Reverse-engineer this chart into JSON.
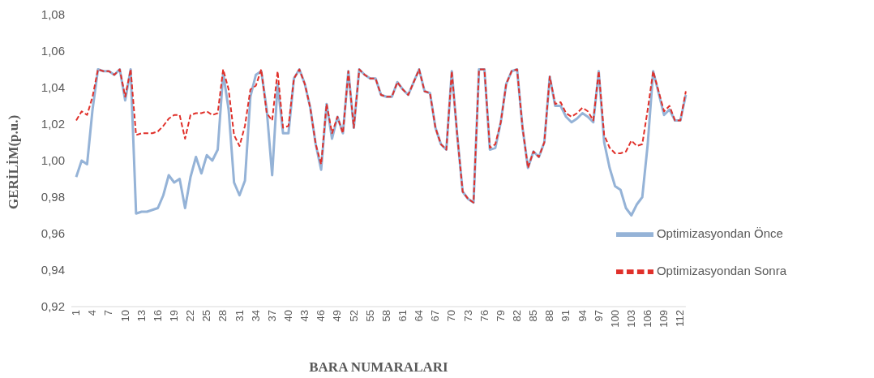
{
  "chart_data": {
    "type": "line",
    "xlabel": "BARA NUMARALARI",
    "ylabel": "GERİLİM(p.u.)",
    "categories": [
      "1",
      null,
      null,
      "4",
      null,
      null,
      "7",
      null,
      null,
      "10",
      null,
      null,
      "13",
      null,
      null,
      "16",
      null,
      null,
      "19",
      null,
      null,
      "22",
      null,
      null,
      "25",
      null,
      null,
      "28",
      null,
      null,
      "31",
      null,
      null,
      "34",
      null,
      null,
      "37",
      null,
      null,
      "40",
      null,
      null,
      "43",
      null,
      null,
      "46",
      null,
      null,
      "49",
      null,
      null,
      "52",
      null,
      null,
      "55",
      null,
      null,
      "58",
      null,
      null,
      "61",
      null,
      null,
      "64",
      null,
      null,
      "67",
      null,
      null,
      "70",
      null,
      null,
      "73",
      null,
      null,
      "76",
      null,
      null,
      "79",
      null,
      null,
      "82",
      null,
      null,
      "85",
      null,
      null,
      "88",
      null,
      null,
      "91",
      null,
      null,
      "94",
      null,
      null,
      "97",
      null,
      null,
      "100",
      null,
      null,
      "103",
      null,
      null,
      "106",
      null,
      null,
      "109",
      null,
      null,
      "112",
      null
    ],
    "series": [
      {
        "name": "Optimizasyondan Önce",
        "color": "#95b3d7",
        "line_style": "solid",
        "values": [
          0.991,
          1.0,
          0.998,
          1.028,
          1.05,
          1.049,
          1.049,
          1.047,
          1.05,
          1.033,
          1.05,
          0.971,
          0.972,
          0.972,
          0.973,
          0.974,
          0.981,
          0.992,
          0.988,
          0.99,
          0.974,
          0.991,
          1.002,
          0.993,
          1.003,
          1.0,
          1.006,
          1.048,
          1.028,
          0.988,
          0.981,
          0.989,
          1.035,
          1.047,
          1.049,
          1.028,
          0.992,
          1.042,
          1.015,
          1.015,
          1.045,
          1.05,
          1.042,
          1.029,
          1.009,
          0.995,
          1.031,
          1.012,
          1.024,
          1.015,
          1.049,
          1.018,
          1.05,
          1.047,
          1.045,
          1.045,
          1.036,
          1.035,
          1.035,
          1.043,
          1.039,
          1.036,
          1.043,
          1.05,
          1.038,
          1.037,
          1.018,
          1.009,
          1.006,
          1.049,
          1.014,
          0.983,
          0.979,
          0.977,
          1.05,
          1.05,
          1.006,
          1.007,
          1.021,
          1.042,
          1.049,
          1.05,
          1.018,
          0.996,
          1.005,
          1.002,
          1.01,
          1.046,
          1.03,
          1.03,
          1.024,
          1.021,
          1.023,
          1.026,
          1.024,
          1.021,
          1.049,
          1.01,
          0.996,
          0.986,
          0.984,
          0.974,
          0.97,
          0.976,
          0.98,
          1.009,
          1.049,
          1.037,
          1.025,
          1.028,
          1.022,
          1.022,
          1.036
        ]
      },
      {
        "name": "Optimizasyondan Sonra",
        "color": "#e0302a",
        "line_style": "dashed",
        "values": [
          1.022,
          1.027,
          1.025,
          1.035,
          1.05,
          1.049,
          1.049,
          1.047,
          1.05,
          1.035,
          1.05,
          1.014,
          1.015,
          1.015,
          1.015,
          1.016,
          1.019,
          1.023,
          1.025,
          1.025,
          1.012,
          1.025,
          1.026,
          1.026,
          1.027,
          1.025,
          1.026,
          1.05,
          1.039,
          1.014,
          1.008,
          1.019,
          1.039,
          1.041,
          1.05,
          1.026,
          1.022,
          1.049,
          1.018,
          1.019,
          1.045,
          1.05,
          1.042,
          1.029,
          1.009,
          0.998,
          1.031,
          1.015,
          1.024,
          1.015,
          1.049,
          1.018,
          1.05,
          1.047,
          1.045,
          1.045,
          1.036,
          1.035,
          1.035,
          1.043,
          1.039,
          1.036,
          1.043,
          1.05,
          1.038,
          1.037,
          1.018,
          1.009,
          1.006,
          1.049,
          1.014,
          0.983,
          0.979,
          0.977,
          1.05,
          1.05,
          1.007,
          1.009,
          1.021,
          1.042,
          1.049,
          1.05,
          1.018,
          0.996,
          1.005,
          1.002,
          1.01,
          1.046,
          1.031,
          1.032,
          1.026,
          1.024,
          1.026,
          1.029,
          1.027,
          1.022,
          1.049,
          1.014,
          1.007,
          1.004,
          1.004,
          1.005,
          1.011,
          1.008,
          1.009,
          1.028,
          1.049,
          1.038,
          1.027,
          1.03,
          1.022,
          1.022,
          1.038
        ]
      }
    ],
    "ylim": [
      0.92,
      1.08
    ],
    "yticks": [
      {
        "value": 0.92,
        "label": "0,92"
      },
      {
        "value": 0.94,
        "label": "0,94"
      },
      {
        "value": 0.96,
        "label": "0,96"
      },
      {
        "value": 0.98,
        "label": "0,98"
      },
      {
        "value": 1.0,
        "label": "1,00"
      },
      {
        "value": 1.02,
        "label": "1,02"
      },
      {
        "value": 1.04,
        "label": "1,04"
      },
      {
        "value": 1.06,
        "label": "1,06"
      },
      {
        "value": 1.08,
        "label": "1,08"
      }
    ],
    "grid": false,
    "legend": "bottom right",
    "marker": "none"
  }
}
